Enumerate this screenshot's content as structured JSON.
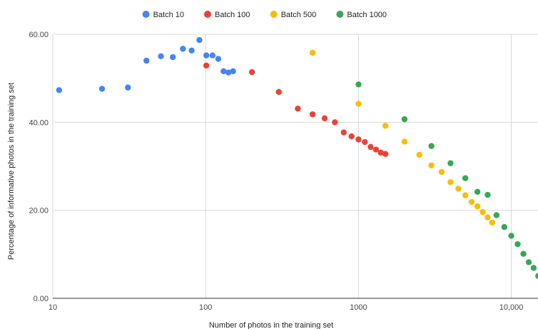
{
  "chart_data": {
    "type": "scatter",
    "xlabel": "Number of photos in the training set",
    "ylabel": "Percentage of informative photos in the training set",
    "x_scale": "log",
    "xlim": [
      10,
      15000
    ],
    "ylim": [
      0,
      60
    ],
    "x_ticks": [
      10,
      100,
      1000,
      10000
    ],
    "x_tick_labels": [
      "10",
      "100",
      "1000",
      "10,000"
    ],
    "y_ticks": [
      0,
      20,
      40,
      60
    ],
    "y_tick_labels": [
      "0.00",
      "20.00",
      "40.00",
      "60.00"
    ],
    "grid": true,
    "legend_position": "top",
    "series": [
      {
        "name": "Batch 10",
        "color": "#4285f4",
        "points": [
          [
            11,
            47.3
          ],
          [
            21,
            47.6
          ],
          [
            31,
            47.9
          ],
          [
            41,
            54.0
          ],
          [
            51,
            55.0
          ],
          [
            61,
            54.8
          ],
          [
            71,
            56.7
          ],
          [
            81,
            56.3
          ],
          [
            91,
            58.7
          ],
          [
            101,
            55.2
          ],
          [
            111,
            55.2
          ],
          [
            121,
            54.4
          ],
          [
            131,
            51.6
          ],
          [
            141,
            51.3
          ],
          [
            151,
            51.6
          ]
        ]
      },
      {
        "name": "Batch 100",
        "color": "#ea4335",
        "points": [
          [
            101,
            52.9
          ],
          [
            201,
            51.4
          ],
          [
            301,
            46.9
          ],
          [
            401,
            43.1
          ],
          [
            501,
            41.8
          ],
          [
            601,
            40.9
          ],
          [
            701,
            40.0
          ],
          [
            801,
            37.7
          ],
          [
            901,
            36.8
          ],
          [
            1001,
            36.1
          ],
          [
            1101,
            35.5
          ],
          [
            1201,
            34.4
          ],
          [
            1301,
            33.8
          ],
          [
            1401,
            33.1
          ],
          [
            1501,
            32.8
          ]
        ]
      },
      {
        "name": "Batch 500",
        "color": "#fbbc04",
        "points": [
          [
            501,
            55.8
          ],
          [
            1001,
            44.2
          ],
          [
            1501,
            39.2
          ],
          [
            2001,
            35.6
          ],
          [
            2501,
            32.6
          ],
          [
            3001,
            30.2
          ],
          [
            3501,
            28.7
          ],
          [
            4001,
            26.4
          ],
          [
            4501,
            24.9
          ],
          [
            5001,
            23.4
          ],
          [
            5501,
            21.9
          ],
          [
            6001,
            20.9
          ],
          [
            6501,
            19.6
          ],
          [
            7001,
            18.4
          ],
          [
            7501,
            17.2
          ]
        ]
      },
      {
        "name": "Batch 1000",
        "color": "#34a853",
        "points": [
          [
            1001,
            48.6
          ],
          [
            2001,
            40.7
          ],
          [
            3001,
            34.6
          ],
          [
            4001,
            30.7
          ],
          [
            5001,
            27.3
          ],
          [
            6001,
            24.2
          ],
          [
            7001,
            23.5
          ],
          [
            8001,
            18.9
          ],
          [
            9001,
            16.2
          ],
          [
            10001,
            14.2
          ],
          [
            11001,
            12.3
          ],
          [
            12001,
            10.1
          ],
          [
            13001,
            8.2
          ],
          [
            14001,
            6.9
          ],
          [
            15001,
            5.1
          ]
        ]
      }
    ]
  }
}
